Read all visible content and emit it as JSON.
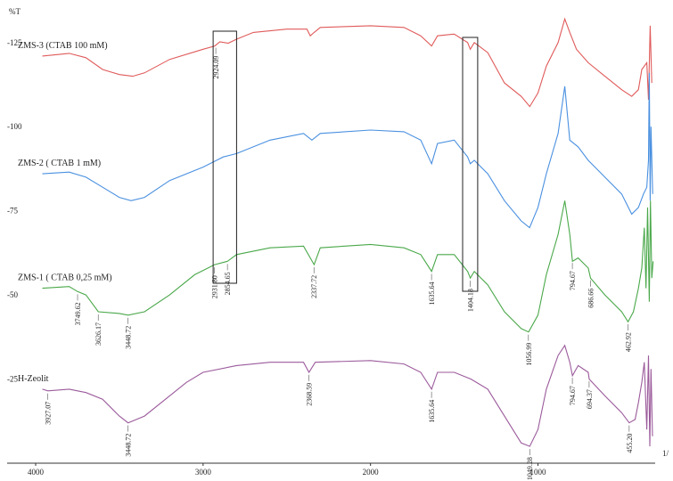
{
  "chart_data": {
    "type": "line",
    "title": "",
    "ylabel": "%T",
    "xlabel": "",
    "x_axis_unit_partial": "1/",
    "x_ticks": [
      4000,
      3000,
      2000,
      1000
    ],
    "y_ticks": [
      {
        "value": 125,
        "label": "-125"
      },
      {
        "value": 100,
        "label": "-100"
      },
      {
        "value": 75,
        "label": "-75"
      },
      {
        "value": 50,
        "label": "-50"
      },
      {
        "value": 25,
        "label": "-25"
      }
    ],
    "xlim": [
      4000,
      300
    ],
    "ylim": [
      0,
      135
    ],
    "grid": false,
    "legend": "inline-left",
    "series": [
      {
        "name": "ZMS-3 (CTAB 100 mM)",
        "color": "#e05a5a",
        "points": [
          [
            3960,
            121
          ],
          [
            3800,
            121.8
          ],
          [
            3700,
            120.5
          ],
          [
            3600,
            117
          ],
          [
            3500,
            115.5
          ],
          [
            3420,
            115
          ],
          [
            3350,
            116
          ],
          [
            3200,
            120
          ],
          [
            3000,
            123
          ],
          [
            2930,
            124
          ],
          [
            2900,
            125.2
          ],
          [
            2850,
            124.8
          ],
          [
            2800,
            126
          ],
          [
            2700,
            128
          ],
          [
            2500,
            129
          ],
          [
            2380,
            129
          ],
          [
            2360,
            127
          ],
          [
            2337,
            128
          ],
          [
            2300,
            129.5
          ],
          [
            2000,
            130
          ],
          [
            1800,
            129.5
          ],
          [
            1700,
            127
          ],
          [
            1635,
            124
          ],
          [
            1600,
            127
          ],
          [
            1500,
            127.5
          ],
          [
            1420,
            125
          ],
          [
            1404,
            123
          ],
          [
            1380,
            125
          ],
          [
            1300,
            122
          ],
          [
            1200,
            113
          ],
          [
            1100,
            109
          ],
          [
            1049,
            106
          ],
          [
            1000,
            110
          ],
          [
            950,
            118
          ],
          [
            880,
            125
          ],
          [
            840,
            132
          ],
          [
            810,
            128
          ],
          [
            770,
            123
          ],
          [
            700,
            119
          ],
          [
            600,
            115
          ],
          [
            500,
            111
          ],
          [
            440,
            109
          ],
          [
            400,
            111
          ],
          [
            380,
            117
          ],
          [
            350,
            119
          ],
          [
            340,
            108
          ],
          [
            330,
            130
          ],
          [
            320,
            113
          ]
        ]
      },
      {
        "name": "ZMS-2 ( CTAB 1 mM)",
        "color": "#4a90e0",
        "points": [
          [
            3960,
            86
          ],
          [
            3800,
            86.5
          ],
          [
            3700,
            85
          ],
          [
            3600,
            82
          ],
          [
            3500,
            79
          ],
          [
            3430,
            78
          ],
          [
            3350,
            79
          ],
          [
            3200,
            84
          ],
          [
            3000,
            88
          ],
          [
            2920,
            90
          ],
          [
            2880,
            91
          ],
          [
            2800,
            92
          ],
          [
            2600,
            96
          ],
          [
            2400,
            98
          ],
          [
            2350,
            96
          ],
          [
            2300,
            98
          ],
          [
            2000,
            99
          ],
          [
            1800,
            98.5
          ],
          [
            1700,
            96
          ],
          [
            1635,
            89
          ],
          [
            1600,
            95
          ],
          [
            1500,
            96
          ],
          [
            1420,
            91
          ],
          [
            1404,
            89
          ],
          [
            1380,
            90
          ],
          [
            1300,
            86
          ],
          [
            1200,
            78
          ],
          [
            1100,
            72
          ],
          [
            1050,
            70
          ],
          [
            1000,
            76
          ],
          [
            950,
            86
          ],
          [
            880,
            98
          ],
          [
            840,
            112
          ],
          [
            810,
            96
          ],
          [
            760,
            94
          ],
          [
            700,
            90
          ],
          [
            600,
            85
          ],
          [
            500,
            80
          ],
          [
            440,
            74
          ],
          [
            400,
            76
          ],
          [
            370,
            80
          ],
          [
            350,
            82
          ],
          [
            340,
            90
          ],
          [
            335,
            116
          ],
          [
            330,
            78
          ],
          [
            325,
            100
          ],
          [
            315,
            80
          ]
        ]
      },
      {
        "name": "ZMS-1 ( CTAB 0,25 mM)",
        "color": "#4aa84a",
        "points": [
          [
            3960,
            52
          ],
          [
            3800,
            52.5
          ],
          [
            3750,
            51
          ],
          [
            3700,
            50
          ],
          [
            3626,
            45
          ],
          [
            3500,
            44.5
          ],
          [
            3448,
            44
          ],
          [
            3350,
            45
          ],
          [
            3200,
            50
          ],
          [
            3050,
            56
          ],
          [
            2931,
            59
          ],
          [
            2854,
            60
          ],
          [
            2800,
            62
          ],
          [
            2600,
            64
          ],
          [
            2400,
            64.5
          ],
          [
            2337,
            59
          ],
          [
            2300,
            64
          ],
          [
            2000,
            65
          ],
          [
            1800,
            64
          ],
          [
            1700,
            62
          ],
          [
            1635,
            57
          ],
          [
            1600,
            62
          ],
          [
            1500,
            62
          ],
          [
            1420,
            57
          ],
          [
            1404,
            55
          ],
          [
            1380,
            57
          ],
          [
            1300,
            53
          ],
          [
            1200,
            45
          ],
          [
            1100,
            40
          ],
          [
            1056,
            39
          ],
          [
            1000,
            44
          ],
          [
            950,
            56
          ],
          [
            880,
            68
          ],
          [
            840,
            78
          ],
          [
            810,
            68
          ],
          [
            794,
            60
          ],
          [
            760,
            61
          ],
          [
            700,
            58
          ],
          [
            686,
            55
          ],
          [
            600,
            50
          ],
          [
            500,
            45
          ],
          [
            462,
            42
          ],
          [
            430,
            45
          ],
          [
            400,
            52
          ],
          [
            380,
            58
          ],
          [
            365,
            70
          ],
          [
            355,
            52
          ],
          [
            345,
            76
          ],
          [
            335,
            48
          ],
          [
            328,
            78
          ],
          [
            320,
            55
          ],
          [
            312,
            60
          ]
        ]
      },
      {
        "name": "H-Zeolit",
        "color": "#9b5a9b",
        "points": [
          [
            3960,
            22
          ],
          [
            3927,
            21.5
          ],
          [
            3800,
            22
          ],
          [
            3700,
            21
          ],
          [
            3600,
            19
          ],
          [
            3500,
            14
          ],
          [
            3448,
            12
          ],
          [
            3350,
            14
          ],
          [
            3200,
            20
          ],
          [
            3100,
            24
          ],
          [
            3000,
            27
          ],
          [
            2800,
            29
          ],
          [
            2600,
            30
          ],
          [
            2400,
            30
          ],
          [
            2368,
            27
          ],
          [
            2330,
            30
          ],
          [
            2000,
            30.5
          ],
          [
            1800,
            29.5
          ],
          [
            1700,
            27
          ],
          [
            1635,
            22
          ],
          [
            1600,
            27
          ],
          [
            1500,
            27
          ],
          [
            1400,
            25
          ],
          [
            1300,
            22
          ],
          [
            1200,
            14
          ],
          [
            1100,
            6
          ],
          [
            1049,
            5
          ],
          [
            1000,
            10
          ],
          [
            950,
            22
          ],
          [
            880,
            32
          ],
          [
            840,
            35
          ],
          [
            810,
            30
          ],
          [
            794,
            26
          ],
          [
            760,
            29
          ],
          [
            700,
            27
          ],
          [
            694,
            25
          ],
          [
            600,
            20
          ],
          [
            500,
            15
          ],
          [
            455,
            12
          ],
          [
            420,
            13
          ],
          [
            400,
            18
          ],
          [
            380,
            24
          ],
          [
            365,
            30
          ],
          [
            350,
            10
          ],
          [
            340,
            32
          ],
          [
            332,
            5
          ],
          [
            325,
            28
          ],
          [
            316,
            8
          ]
        ]
      }
    ],
    "annotations": [
      {
        "label": "2924.09",
        "series": 0
      },
      {
        "label": "2931.80",
        "series": 2
      },
      {
        "label": "2854.65",
        "series": 2
      },
      {
        "label": "3749.62",
        "series": 2
      },
      {
        "label": "3626.17",
        "series": 2
      },
      {
        "label": "3448.72",
        "series": 2
      },
      {
        "label": "2337.72",
        "series": 2
      },
      {
        "label": "1635.64",
        "series": 2
      },
      {
        "label": "1404.18",
        "series": 2
      },
      {
        "label": "1056.99",
        "series": 2
      },
      {
        "label": "794.67",
        "series": 2
      },
      {
        "label": "686.66",
        "series": 2
      },
      {
        "label": "462.92",
        "series": 2
      },
      {
        "label": "3927.07",
        "series": 3
      },
      {
        "label": "3448.72",
        "series": 3
      },
      {
        "label": "2368.59",
        "series": 3
      },
      {
        "label": "1635.64",
        "series": 3
      },
      {
        "label": "1049.28",
        "series": 3
      },
      {
        "label": "794.67",
        "series": 3
      },
      {
        "label": "694.37",
        "series": 3
      },
      {
        "label": "455.20",
        "series": 3
      }
    ]
  }
}
